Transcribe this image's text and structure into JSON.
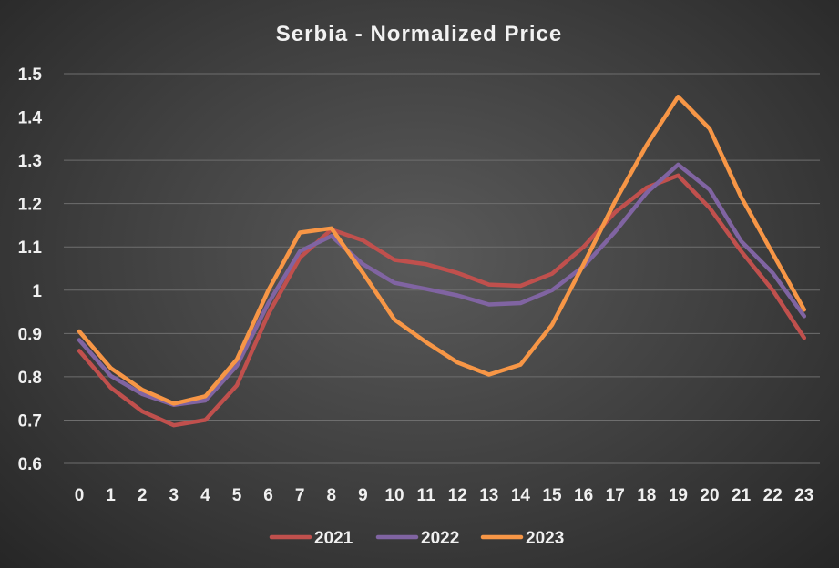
{
  "chart_data": {
    "type": "line",
    "title": "Serbia - Normalized Price",
    "xlabel": "",
    "ylabel": "",
    "x": [
      0,
      1,
      2,
      3,
      4,
      5,
      6,
      7,
      8,
      9,
      10,
      11,
      12,
      13,
      14,
      15,
      16,
      17,
      18,
      19,
      20,
      21,
      22,
      23
    ],
    "x_tick_labels": [
      "0",
      "1",
      "2",
      "3",
      "4",
      "5",
      "6",
      "7",
      "8",
      "9",
      "10",
      "11",
      "12",
      "13",
      "14",
      "15",
      "16",
      "17",
      "18",
      "19",
      "20",
      "21",
      "22",
      "23"
    ],
    "ylim": [
      0.6,
      1.5
    ],
    "y_ticks": [
      0.6,
      0.7,
      0.8,
      0.9,
      1.0,
      1.1,
      1.2,
      1.3,
      1.4,
      1.5
    ],
    "y_tick_labels": [
      "0.6",
      "0.7",
      "0.8",
      "0.9",
      "1",
      "1.1",
      "1.2",
      "1.3",
      "1.4",
      "1.5"
    ],
    "grid": "horizontal",
    "legend_position": "bottom",
    "series": [
      {
        "name": "2021",
        "color": "#c0504d",
        "values": [
          0.86,
          0.775,
          0.72,
          0.688,
          0.7,
          0.78,
          0.945,
          1.075,
          1.14,
          1.115,
          1.07,
          1.06,
          1.04,
          1.013,
          1.01,
          1.038,
          1.1,
          1.18,
          1.237,
          1.265,
          1.19,
          1.09,
          1.0,
          0.89
        ]
      },
      {
        "name": "2022",
        "color": "#8064a2",
        "values": [
          0.885,
          0.802,
          0.76,
          0.735,
          0.745,
          0.825,
          0.97,
          1.09,
          1.125,
          1.06,
          1.017,
          1.003,
          0.988,
          0.967,
          0.97,
          1.0,
          1.055,
          1.135,
          1.225,
          1.29,
          1.232,
          1.113,
          1.04,
          0.94
        ]
      },
      {
        "name": "2023",
        "color": "#f79646",
        "values": [
          0.905,
          0.82,
          0.77,
          0.738,
          0.755,
          0.84,
          1.0,
          1.133,
          1.143,
          1.04,
          0.932,
          0.88,
          0.833,
          0.805,
          0.828,
          0.92,
          1.06,
          1.205,
          1.335,
          1.447,
          1.373,
          1.215,
          1.085,
          0.955
        ]
      }
    ]
  }
}
